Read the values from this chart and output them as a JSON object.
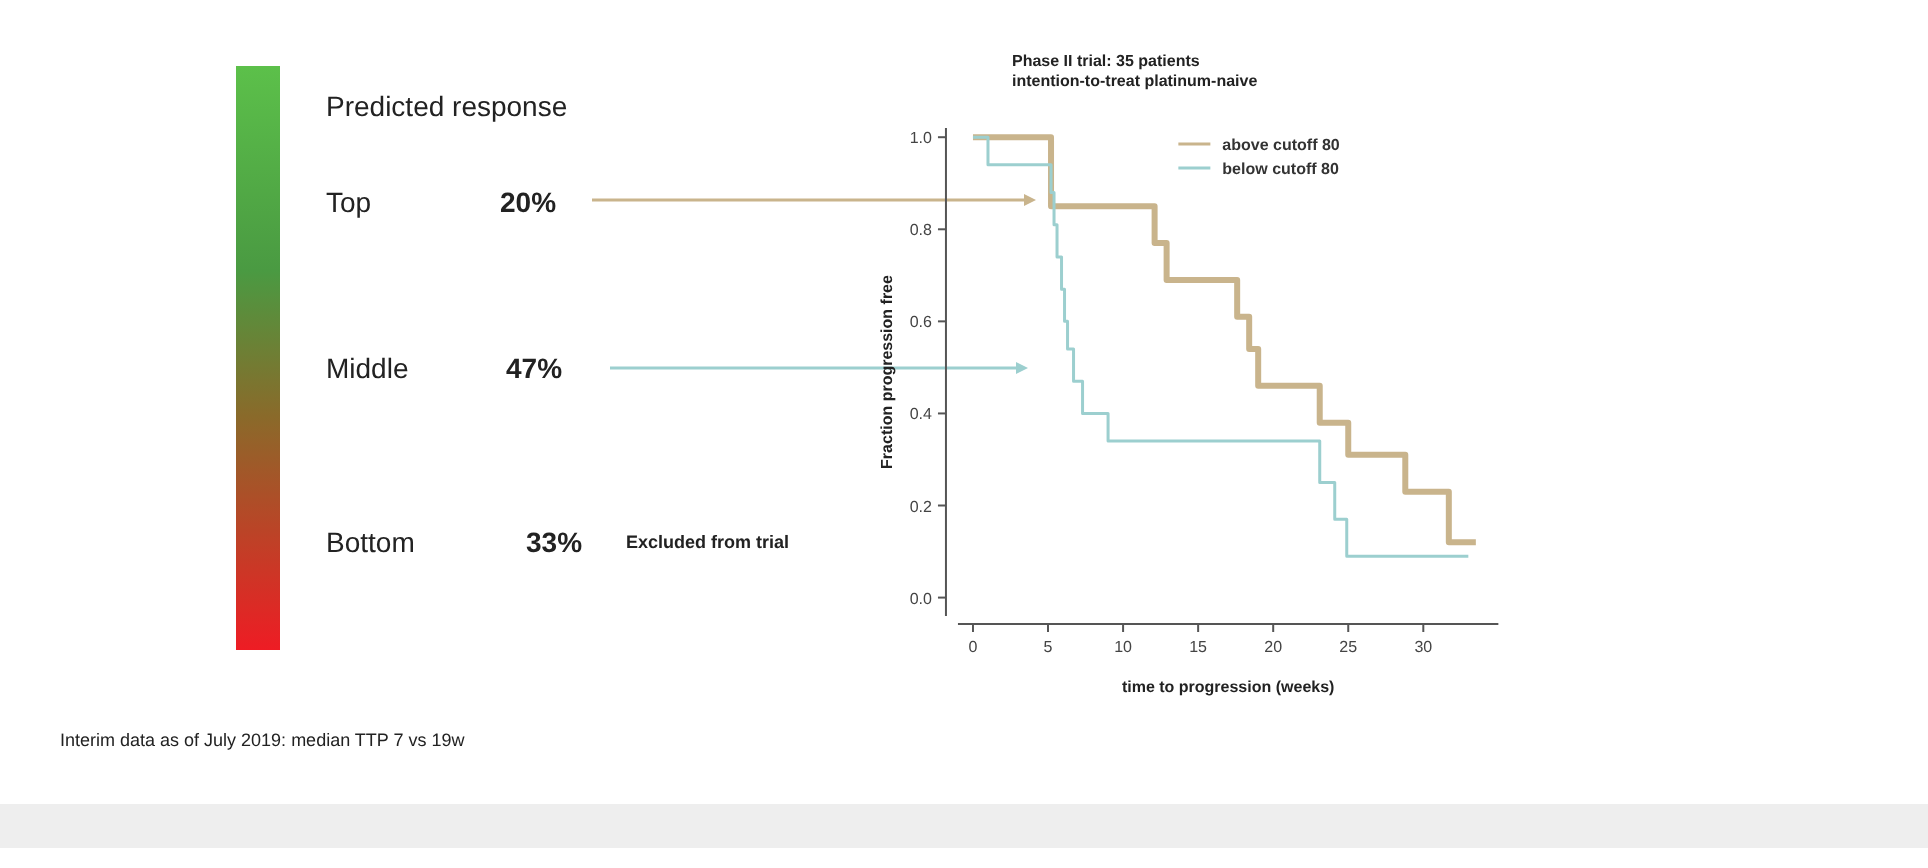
{
  "chart_data": {
    "type": "step",
    "title": "Phase II trial: 35 patients",
    "subtitle": "intention-to-treat platinum-naive",
    "xlabel": "time to progression (weeks)",
    "ylabel": "Fraction progression free",
    "xlim": [
      -1,
      35
    ],
    "xticks": [
      0,
      5,
      10,
      15,
      20,
      25,
      30
    ],
    "ylim": [
      -0.04,
      1.02
    ],
    "yticks": [
      {
        "value": 0,
        "label": "0.0"
      },
      {
        "value": 0.2,
        "label": "0.2"
      },
      {
        "value": 0.4,
        "label": "0.4"
      },
      {
        "value": 0.6,
        "label": "0.6"
      },
      {
        "value": 0.8,
        "label": "0.8"
      },
      {
        "value": 1,
        "label": "1.0"
      }
    ],
    "legend": "top right",
    "grid": false,
    "series": [
      {
        "name": "above cutoff 80",
        "color": "#c9b48c",
        "x": [
          0,
          5.2,
          12.1,
          12.9,
          17.6,
          18.4,
          19.0,
          23.1,
          25.0,
          28.8,
          31.7,
          33.5
        ],
        "values": [
          1.0,
          0.85,
          0.77,
          0.69,
          0.61,
          0.54,
          0.46,
          0.38,
          0.31,
          0.23,
          0.12,
          0.12
        ]
      },
      {
        "name": "below cutoff 80",
        "color": "#9ccfcf",
        "x": [
          0,
          1.0,
          5.2,
          5.4,
          5.6,
          5.9,
          6.1,
          6.3,
          6.7,
          7.3,
          9.0,
          23.1,
          24.1,
          24.9,
          33
        ],
        "values": [
          1.0,
          0.94,
          0.88,
          0.81,
          0.74,
          0.67,
          0.6,
          0.54,
          0.47,
          0.4,
          0.34,
          0.25,
          0.17,
          0.09,
          0.09
        ]
      }
    ],
    "annotations": [
      "Predicted response",
      "Top",
      "20%",
      "Middle",
      "47%",
      "Bottom",
      "33%",
      "Excluded from trial",
      "Interim data as of July 2019: median TTP 7 vs 19w"
    ]
  }
}
